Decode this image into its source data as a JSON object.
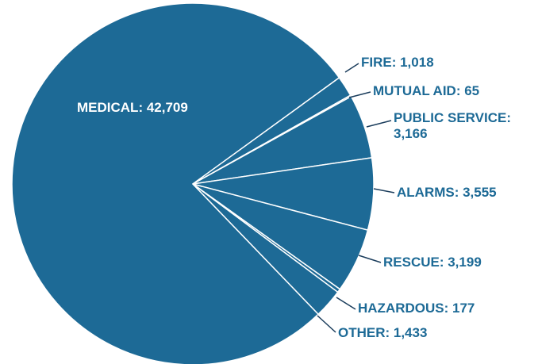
{
  "chart_data": {
    "type": "pie",
    "values": [
      42709,
      1018,
      65,
      3166,
      3555,
      3199,
      177,
      1433
    ],
    "value_labels": [
      "MEDICAL: 42,709",
      "FIRE: 1,018",
      "MUTUAL AID: 65",
      "PUBLIC SERVICE: 3,166",
      "ALARMS: 3,555",
      "RESCUE: 3,199",
      "HAZARDOUS: 177",
      "OTHER: 1,433"
    ],
    "color": "#1d6a96"
  }
}
